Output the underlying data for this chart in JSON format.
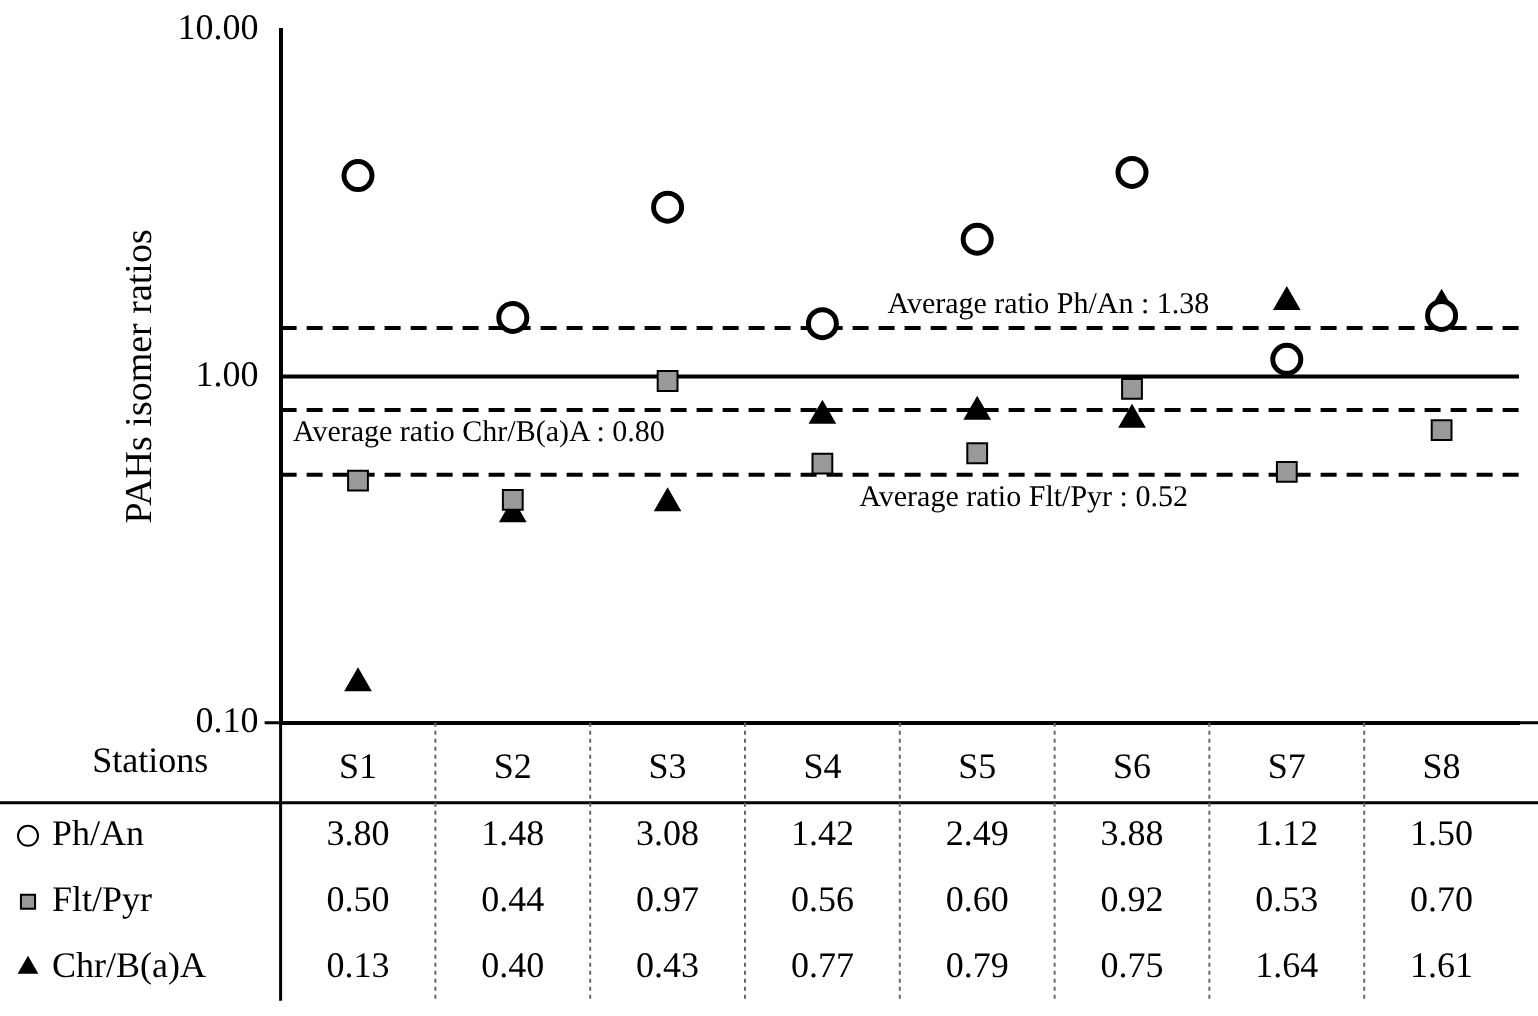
{
  "chart_data": {
    "type": "scatter",
    "ylabel": "PAHs isomer ratios",
    "xlabel": "Stations",
    "categories": [
      "S1",
      "S2",
      "S3",
      "S4",
      "S5",
      "S6",
      "S7",
      "S8"
    ],
    "log": true,
    "legend": "bottom",
    "ylim": [
      0.1,
      10
    ],
    "yticks": [
      {
        "value": 0.1,
        "label": "0.10"
      },
      {
        "value": 1,
        "label": "1.00"
      },
      {
        "value": 10,
        "label": "10.00"
      }
    ],
    "series": [
      {
        "name": "Ph/An",
        "color": "#000000",
        "marker": "circle",
        "values": [
          3.8,
          1.48,
          3.08,
          1.42,
          2.49,
          3.88,
          1.12,
          1.5
        ],
        "value_labels": [
          "3.80",
          "1.48",
          "3.08",
          "1.42",
          "2.49",
          "3.88",
          "1.12",
          "1.50"
        ]
      },
      {
        "name": "Flt/Pyr",
        "color": "#999999",
        "marker": "square",
        "values": [
          0.5,
          0.44,
          0.97,
          0.56,
          0.6,
          0.92,
          0.53,
          0.7
        ],
        "value_labels": [
          "0.50",
          "0.44",
          "0.97",
          "0.56",
          "0.60",
          "0.92",
          "0.53",
          "0.70"
        ]
      },
      {
        "name": "Chr/B(a)A",
        "color": "#000000",
        "marker": "triangle",
        "values": [
          0.13,
          0.4,
          0.43,
          0.77,
          0.79,
          0.75,
          1.64,
          1.61
        ],
        "value_labels": [
          "0.13",
          "0.40",
          "0.43",
          "0.77",
          "0.79",
          "0.75",
          "1.64",
          "1.61"
        ]
      }
    ],
    "ref_lines": [
      {
        "axis": "y",
        "value": 1.38,
        "label": "Average ratio Ph/An : 1.38",
        "line_style": "dashed"
      },
      {
        "axis": "y",
        "value": 0.8,
        "label": "Average ratio Chr/B(a)A : 0.80",
        "line_style": "dashed"
      },
      {
        "axis": "y",
        "value": 0.52,
        "label": "Average ratio Flt/Pyr : 0.52",
        "line_style": "dashed"
      },
      {
        "axis": "y",
        "value": 1,
        "line_style": "solid"
      }
    ]
  }
}
